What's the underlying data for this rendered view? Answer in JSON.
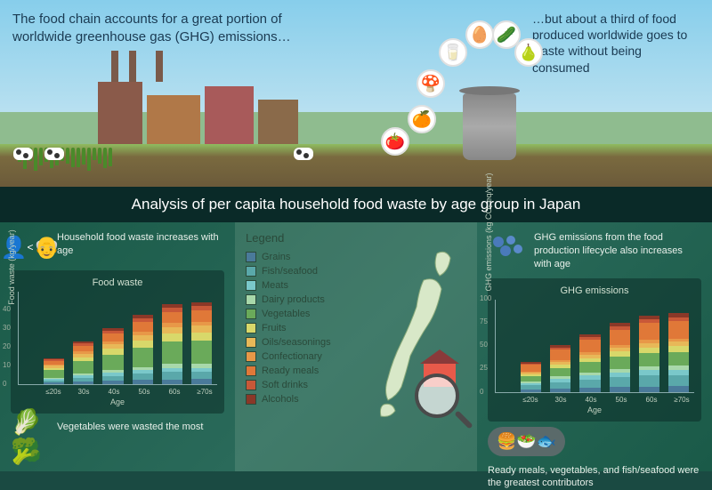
{
  "top": {
    "left_text": "The food chain accounts for a great portion of worldwide greenhouse gas (GHG) emissions…",
    "right_text": "…but about a third of food produced worldwide goes to waste without being consumed"
  },
  "title_band": "Analysis of per capita household food waste by age group in Japan",
  "legend": {
    "title": "Legend",
    "items": [
      {
        "label": "Grains",
        "color": "#4a7a9a"
      },
      {
        "label": "Fish/seafood",
        "color": "#5aa8aa"
      },
      {
        "label": "Meats",
        "color": "#7ac8ca"
      },
      {
        "label": "Dairy products",
        "color": "#a8d8aa"
      },
      {
        "label": "Vegetables",
        "color": "#6aaa5a"
      },
      {
        "label": "Fruits",
        "color": "#d8d86a"
      },
      {
        "label": "Oils/seasonings",
        "color": "#e8b858"
      },
      {
        "label": "Confectionary",
        "color": "#e89848"
      },
      {
        "label": "Ready meals",
        "color": "#e07838"
      },
      {
        "label": "Soft drinks",
        "color": "#c85838"
      },
      {
        "label": "Alcohols",
        "color": "#8a3828"
      }
    ]
  },
  "left_col": {
    "fact1": "Household food waste increases with age",
    "fact2": "Vegetables were wasted the most",
    "chart": {
      "title": "Food waste",
      "ylabel": "Food waste (kg/year)",
      "xlabel": "Age",
      "ylim": 50,
      "yticks": [
        0,
        10,
        20,
        30,
        40
      ],
      "categories": [
        "≤20s",
        "30s",
        "40s",
        "50s",
        "60s",
        "≥70s"
      ],
      "totals": [
        14,
        23,
        30,
        37,
        43,
        44
      ],
      "stack_colors": [
        "#4a7a9a",
        "#5aa8aa",
        "#7ac8ca",
        "#a8d8aa",
        "#6aaa5a",
        "#d8d86a",
        "#e8b858",
        "#e89848",
        "#e07838",
        "#c85838",
        "#8a3828"
      ],
      "stack_fractions": [
        0.06,
        0.09,
        0.05,
        0.05,
        0.28,
        0.1,
        0.08,
        0.05,
        0.14,
        0.05,
        0.05
      ]
    }
  },
  "right_col": {
    "fact1": "GHG emissions from the food production lifecycle also increases with age",
    "fact2": "Ready meals, vegetables, and fish/seafood were the greatest contributors",
    "chart": {
      "title": "GHG emissions",
      "ylabel": "GHG emissions (kg CO₂ eq/year)",
      "xlabel": "Age",
      "ylim": 100,
      "yticks": [
        0,
        25,
        50,
        75,
        100
      ],
      "categories": [
        "≤20s",
        "30s",
        "40s",
        "50s",
        "60s",
        "≥70s"
      ],
      "totals": [
        32,
        50,
        62,
        74,
        82,
        84
      ],
      "stack_colors": [
        "#4a7a9a",
        "#5aa8aa",
        "#7ac8ca",
        "#a8d8aa",
        "#6aaa5a",
        "#d8d86a",
        "#e8b858",
        "#e89848",
        "#e07838",
        "#c85838",
        "#8a3828"
      ],
      "stack_fractions": [
        0.07,
        0.14,
        0.07,
        0.05,
        0.18,
        0.07,
        0.06,
        0.04,
        0.22,
        0.05,
        0.05
      ]
    }
  },
  "food_icons": [
    "🍅",
    "🍊",
    "🍄",
    "🥛",
    "🥚",
    "🥒",
    "🍐"
  ]
}
